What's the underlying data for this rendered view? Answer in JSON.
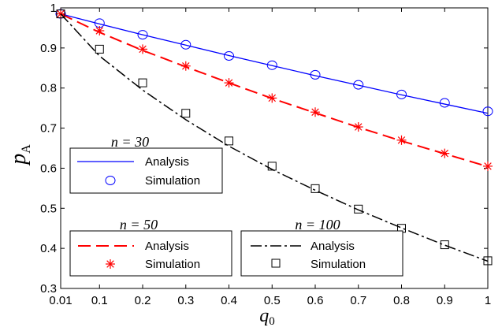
{
  "chart_data": {
    "type": "line",
    "xlabel": "q",
    "xlabel_sub": "0",
    "ylabel": "p",
    "ylabel_sub": "A",
    "xlim": [
      0.01,
      1
    ],
    "ylim": [
      0.3,
      1
    ],
    "xticks": [
      "0.01",
      "0.1",
      "0.2",
      "0.3",
      "0.4",
      "0.5",
      "0.6",
      "0.7",
      "0.8",
      "0.9",
      "1"
    ],
    "xtick_values": [
      0.01,
      0.1,
      0.2,
      0.3,
      0.4,
      0.5,
      0.6,
      0.7,
      0.8,
      0.9,
      1
    ],
    "yticks": [
      "0.3",
      "0.4",
      "0.5",
      "0.6",
      "0.7",
      "0.8",
      "0.9",
      "1"
    ],
    "ytick_values": [
      0.3,
      0.4,
      0.5,
      0.6,
      0.7,
      0.8,
      0.9,
      1
    ],
    "grid": false,
    "x": [
      0.01,
      0.1,
      0.2,
      0.3,
      0.4,
      0.5,
      0.6,
      0.7,
      0.8,
      0.9,
      1
    ],
    "groups": [
      {
        "title": "n = 30",
        "color": "#0000ff",
        "line_style": "solid",
        "marker": "circle",
        "analysis_label": "Analysis",
        "simulation_label": "Simulation",
        "analysis": [
          0.985,
          0.96,
          0.933,
          0.907,
          0.881,
          0.856,
          0.831,
          0.807,
          0.783,
          0.76,
          0.737
        ],
        "simulation": [
          0.985,
          0.962,
          0.933,
          0.908,
          0.88,
          0.857,
          0.833,
          0.808,
          0.784,
          0.763,
          0.742
        ]
      },
      {
        "title": "n = 50",
        "color": "#ff0000",
        "line_style": "dashed",
        "marker": "star",
        "analysis_label": "Analysis",
        "simulation_label": "Simulation",
        "analysis": [
          0.985,
          0.939,
          0.894,
          0.853,
          0.813,
          0.774,
          0.738,
          0.702,
          0.668,
          0.636,
          0.604
        ],
        "simulation": [
          0.985,
          0.943,
          0.897,
          0.855,
          0.813,
          0.775,
          0.74,
          0.703,
          0.67,
          0.637,
          0.605
        ]
      },
      {
        "title": "n = 100",
        "color": "#000000",
        "line_style": "dashdot",
        "marker": "square",
        "analysis_label": "Analysis",
        "simulation_label": "Simulation",
        "analysis": [
          0.985,
          0.88,
          0.795,
          0.721,
          0.655,
          0.597,
          0.545,
          0.496,
          0.451,
          0.408,
          0.368
        ],
        "simulation": [
          0.985,
          0.897,
          0.813,
          0.737,
          0.668,
          0.605,
          0.549,
          0.498,
          0.45,
          0.409,
          0.369
        ]
      }
    ]
  }
}
